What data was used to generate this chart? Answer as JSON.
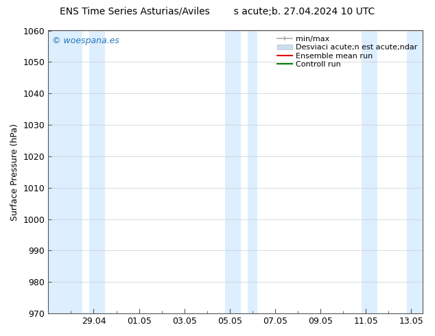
{
  "title_left": "ENS Time Series Asturias/Aviles",
  "title_right": "s acute;b. 27.04.2024 10 UTC",
  "ylabel": "Surface Pressure (hPa)",
  "ylim": [
    970,
    1060
  ],
  "yticks": [
    970,
    980,
    990,
    1000,
    1010,
    1020,
    1030,
    1040,
    1050,
    1060
  ],
  "xtick_labels": [
    "29.04",
    "01.05",
    "03.05",
    "05.05",
    "07.05",
    "09.05",
    "11.05",
    "13.05"
  ],
  "xtick_days": [
    2,
    4,
    6,
    8,
    10,
    12,
    14,
    16
  ],
  "xlim": [
    0,
    16.5
  ],
  "shaded_intervals": [
    [
      0,
      1.5
    ],
    [
      1.8,
      2.5
    ],
    [
      7.8,
      8.5
    ],
    [
      8.8,
      9.2
    ],
    [
      13.8,
      14.5
    ],
    [
      15.8,
      16.5
    ]
  ],
  "shaded_color": "#ddeeff",
  "watermark": "© woespana.es",
  "watermark_color": "#2277bb",
  "legend_minmax_color": "#aaaaaa",
  "legend_desviac_color": "#ccddf0",
  "legend_ensemble_color": "#dd0000",
  "legend_control_color": "#007700",
  "bg_color": "#ffffff",
  "grid_color": "#cccccc",
  "title_fontsize": 10,
  "label_fontsize": 9,
  "legend_fontsize": 8
}
